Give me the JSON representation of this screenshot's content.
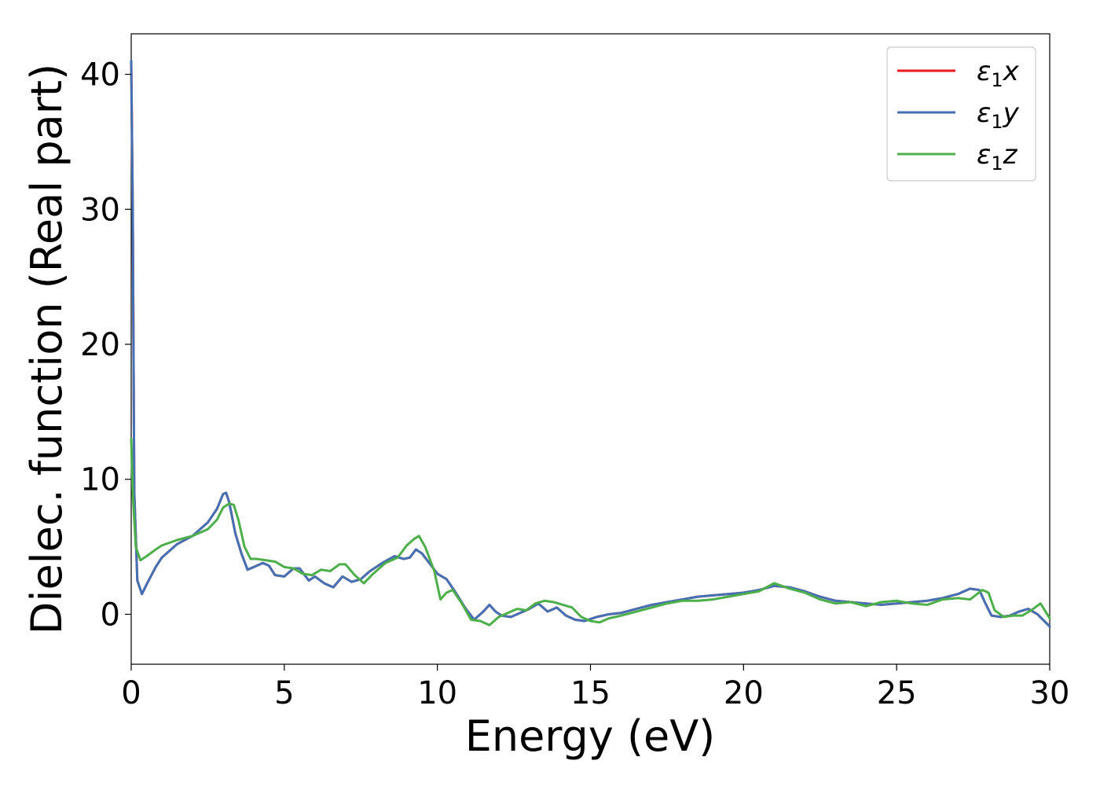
{
  "chart_data": {
    "type": "line",
    "xlabel": "Energy (eV)",
    "ylabel": "Dielec. function (Real part)",
    "xlim": [
      0,
      30
    ],
    "ylim": [
      -3.7,
      43
    ],
    "xticks": [
      0,
      5,
      10,
      15,
      20,
      25,
      30
    ],
    "yticks": [
      0,
      10,
      20,
      30,
      40
    ],
    "grid": false,
    "legend_position": "top-right",
    "series": [
      {
        "name": "ε1x",
        "legend_base": "ε",
        "legend_sub": "1",
        "legend_suffix": "x",
        "color": "#e41a1c",
        "x": [
          0,
          0.05,
          0.1,
          0.2,
          0.35,
          0.5,
          0.8,
          1.0,
          1.5,
          2.0,
          2.5,
          2.8,
          3.0,
          3.1,
          3.2,
          3.4,
          3.6,
          3.8,
          4.0,
          4.3,
          4.5,
          4.7,
          5.0,
          5.3,
          5.5,
          5.8,
          6.0,
          6.3,
          6.6,
          6.9,
          7.2,
          7.5,
          7.8,
          8.2,
          8.6,
          8.9,
          9.1,
          9.3,
          9.5,
          9.8,
          10.0,
          10.3,
          10.6,
          10.9,
          11.2,
          11.5,
          11.7,
          11.9,
          12.1,
          12.4,
          12.7,
          13.0,
          13.3,
          13.6,
          13.9,
          14.2,
          14.5,
          14.8,
          15.2,
          15.6,
          16.0,
          16.5,
          17.0,
          17.5,
          18.0,
          18.5,
          19.0,
          19.5,
          20.0,
          20.5,
          21.0,
          21.5,
          22.0,
          22.5,
          23.0,
          23.5,
          24.0,
          24.5,
          25.0,
          25.5,
          26.0,
          26.5,
          27.0,
          27.4,
          27.7,
          27.9,
          28.1,
          28.4,
          28.7,
          29.0,
          29.3,
          29.6,
          30.0
        ],
        "y": [
          41,
          30,
          9,
          2.5,
          1.5,
          2.2,
          3.5,
          4.2,
          5.2,
          5.8,
          6.8,
          7.8,
          8.9,
          9.0,
          8.3,
          6.0,
          4.5,
          3.3,
          3.5,
          3.8,
          3.6,
          2.9,
          2.8,
          3.4,
          3.4,
          2.5,
          2.8,
          2.3,
          2.0,
          2.8,
          2.4,
          2.6,
          3.2,
          3.8,
          4.3,
          4.1,
          4.2,
          4.8,
          4.5,
          3.6,
          3.0,
          2.6,
          1.6,
          0.5,
          -0.4,
          0.2,
          0.7,
          0.2,
          -0.1,
          -0.2,
          0.1,
          0.4,
          0.8,
          0.2,
          0.5,
          -0.1,
          -0.4,
          -0.5,
          -0.2,
          0.0,
          0.1,
          0.4,
          0.7,
          0.9,
          1.1,
          1.3,
          1.4,
          1.5,
          1.6,
          1.8,
          2.1,
          2.0,
          1.7,
          1.3,
          1.0,
          0.9,
          0.8,
          0.7,
          0.8,
          0.9,
          1.0,
          1.2,
          1.5,
          1.9,
          1.8,
          0.8,
          -0.1,
          -0.2,
          -0.1,
          0.2,
          0.4,
          0.0,
          -0.9
        ]
      },
      {
        "name": "ε1y",
        "legend_base": "ε",
        "legend_sub": "1",
        "legend_suffix": "y",
        "color": "#4471b4",
        "x": [
          0,
          0.05,
          0.1,
          0.2,
          0.35,
          0.5,
          0.8,
          1.0,
          1.5,
          2.0,
          2.5,
          2.8,
          3.0,
          3.1,
          3.2,
          3.4,
          3.6,
          3.8,
          4.0,
          4.3,
          4.5,
          4.7,
          5.0,
          5.3,
          5.5,
          5.8,
          6.0,
          6.3,
          6.6,
          6.9,
          7.2,
          7.5,
          7.8,
          8.2,
          8.6,
          8.9,
          9.1,
          9.3,
          9.5,
          9.8,
          10.0,
          10.3,
          10.6,
          10.9,
          11.2,
          11.5,
          11.7,
          11.9,
          12.1,
          12.4,
          12.7,
          13.0,
          13.3,
          13.6,
          13.9,
          14.2,
          14.5,
          14.8,
          15.2,
          15.6,
          16.0,
          16.5,
          17.0,
          17.5,
          18.0,
          18.5,
          19.0,
          19.5,
          20.0,
          20.5,
          21.0,
          21.5,
          22.0,
          22.5,
          23.0,
          23.5,
          24.0,
          24.5,
          25.0,
          25.5,
          26.0,
          26.5,
          27.0,
          27.4,
          27.7,
          27.9,
          28.1,
          28.4,
          28.7,
          29.0,
          29.3,
          29.6,
          30.0
        ],
        "y": [
          41,
          30,
          9,
          2.5,
          1.5,
          2.2,
          3.5,
          4.2,
          5.2,
          5.8,
          6.8,
          7.8,
          8.9,
          9.0,
          8.3,
          6.0,
          4.5,
          3.3,
          3.5,
          3.8,
          3.6,
          2.9,
          2.8,
          3.4,
          3.4,
          2.5,
          2.8,
          2.3,
          2.0,
          2.8,
          2.4,
          2.6,
          3.2,
          3.8,
          4.3,
          4.1,
          4.2,
          4.8,
          4.5,
          3.6,
          3.0,
          2.6,
          1.6,
          0.5,
          -0.4,
          0.2,
          0.7,
          0.2,
          -0.1,
          -0.2,
          0.1,
          0.4,
          0.8,
          0.2,
          0.5,
          -0.1,
          -0.4,
          -0.5,
          -0.2,
          0.0,
          0.1,
          0.4,
          0.7,
          0.9,
          1.1,
          1.3,
          1.4,
          1.5,
          1.6,
          1.8,
          2.1,
          2.0,
          1.7,
          1.3,
          1.0,
          0.9,
          0.8,
          0.7,
          0.8,
          0.9,
          1.0,
          1.2,
          1.5,
          1.9,
          1.8,
          0.8,
          -0.1,
          -0.2,
          -0.1,
          0.2,
          0.4,
          0.0,
          -0.9
        ]
      },
      {
        "name": "ε1z",
        "legend_base": "ε",
        "legend_sub": "1",
        "legend_suffix": "z",
        "color": "#4daf4a",
        "x": [
          0,
          0.05,
          0.15,
          0.3,
          0.5,
          0.8,
          1.0,
          1.5,
          2.0,
          2.5,
          2.8,
          3.0,
          3.2,
          3.35,
          3.5,
          3.7,
          3.9,
          4.1,
          4.4,
          4.7,
          5.0,
          5.3,
          5.6,
          5.9,
          6.2,
          6.5,
          6.8,
          7.0,
          7.3,
          7.6,
          7.9,
          8.3,
          8.7,
          9.0,
          9.25,
          9.4,
          9.6,
          9.9,
          10.1,
          10.3,
          10.5,
          10.8,
          11.1,
          11.4,
          11.7,
          12.0,
          12.3,
          12.6,
          12.9,
          13.2,
          13.5,
          13.8,
          14.1,
          14.4,
          14.7,
          15.0,
          15.3,
          15.6,
          16.0,
          16.5,
          17.0,
          17.5,
          18.0,
          18.5,
          19.0,
          19.5,
          20.0,
          20.5,
          21.0,
          21.5,
          22.0,
          22.5,
          23.0,
          23.5,
          24.0,
          24.5,
          25.0,
          25.5,
          26.0,
          26.5,
          27.0,
          27.4,
          27.8,
          28.0,
          28.2,
          28.5,
          28.8,
          29.1,
          29.4,
          29.7,
          30.0
        ],
        "y": [
          13,
          9,
          5.0,
          4.0,
          4.3,
          4.8,
          5.1,
          5.5,
          5.8,
          6.3,
          7.0,
          7.9,
          8.2,
          8.1,
          7.0,
          5.0,
          4.1,
          4.1,
          4.0,
          3.9,
          3.5,
          3.4,
          3.0,
          2.9,
          3.3,
          3.2,
          3.7,
          3.7,
          2.9,
          2.3,
          3.0,
          3.8,
          4.2,
          5.1,
          5.6,
          5.8,
          5.0,
          3.2,
          1.1,
          1.6,
          1.8,
          0.8,
          -0.4,
          -0.5,
          -0.8,
          -0.2,
          0.1,
          0.4,
          0.3,
          0.8,
          1.0,
          0.9,
          0.7,
          0.5,
          -0.2,
          -0.5,
          -0.6,
          -0.3,
          -0.1,
          0.2,
          0.5,
          0.8,
          1.0,
          1.0,
          1.1,
          1.3,
          1.5,
          1.7,
          2.3,
          1.9,
          1.6,
          1.1,
          0.8,
          0.9,
          0.6,
          0.9,
          1.0,
          0.8,
          0.7,
          1.1,
          1.2,
          1.1,
          1.8,
          1.6,
          0.3,
          -0.2,
          -0.1,
          -0.1,
          0.3,
          0.8,
          -0.3
        ]
      }
    ]
  }
}
